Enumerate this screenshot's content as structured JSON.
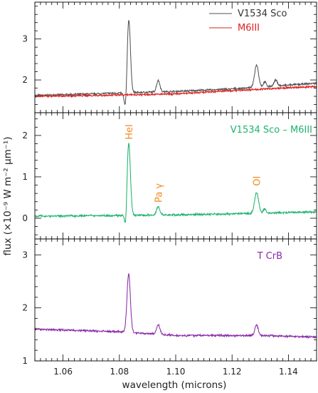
{
  "chart_data": [
    {
      "type": "line",
      "panel": "top",
      "xlim": [
        1.05,
        1.15
      ],
      "ylim": [
        1.2,
        3.9
      ],
      "yticks": [
        2,
        3
      ],
      "ytick_labels": [
        "2",
        "3"
      ],
      "legend_position": "top-right",
      "legend": [
        "V1534 Sco",
        "M6III"
      ],
      "series": [
        {
          "name": "V1534 Sco",
          "color": "#555555",
          "baseline": [
            [
              1.05,
              1.62
            ],
            [
              1.08,
              1.68
            ],
            [
              1.1,
              1.72
            ],
            [
              1.12,
              1.78
            ],
            [
              1.15,
              1.92
            ]
          ],
          "features": [
            {
              "center": 1.0833,
              "amplitude": 1.85,
              "width": 0.0006,
              "type": "emission"
            },
            {
              "center": 1.0823,
              "amplitude": -0.55,
              "width": 0.0005,
              "type": "absorption"
            },
            {
              "center": 1.0938,
              "amplitude": 0.28,
              "width": 0.0006,
              "type": "emission"
            },
            {
              "center": 1.1287,
              "amplitude": 0.55,
              "width": 0.0007,
              "type": "emission"
            },
            {
              "center": 1.1316,
              "amplitude": 0.12,
              "width": 0.0005,
              "type": "emission"
            },
            {
              "center": 1.1355,
              "amplitude": 0.14,
              "width": 0.0006,
              "type": "emission"
            }
          ]
        },
        {
          "name": "M6III",
          "color": "#dd1f1f",
          "baseline": [
            [
              1.05,
              1.6
            ],
            [
              1.08,
              1.63
            ],
            [
              1.1,
              1.66
            ],
            [
              1.12,
              1.74
            ],
            [
              1.15,
              1.84
            ]
          ],
          "features": []
        }
      ]
    },
    {
      "type": "line",
      "panel": "middle",
      "xlim": [
        1.05,
        1.15
      ],
      "ylim": [
        -0.5,
        2.55
      ],
      "yticks": [
        0,
        1,
        2
      ],
      "ytick_labels": [
        "0",
        "1",
        "2"
      ],
      "label": "V1534 Sco – M6III",
      "label_position": "top-right",
      "series": [
        {
          "name": "V1534 Sco – M6III",
          "color": "#1fb36e",
          "baseline": [
            [
              1.05,
              0.05
            ],
            [
              1.1,
              0.08
            ],
            [
              1.15,
              0.15
            ]
          ],
          "features": [
            {
              "center": 1.0833,
              "amplitude": 1.75,
              "width": 0.0006,
              "type": "emission"
            },
            {
              "center": 1.0823,
              "amplitude": -0.45,
              "width": 0.0004,
              "type": "absorption"
            },
            {
              "center": 1.0938,
              "amplitude": 0.2,
              "width": 0.0006,
              "type": "emission"
            },
            {
              "center": 1.1287,
              "amplitude": 0.5,
              "width": 0.0007,
              "type": "emission"
            },
            {
              "center": 1.1315,
              "amplitude": 0.1,
              "width": 0.0005,
              "type": "emission"
            }
          ]
        }
      ],
      "annotations": [
        {
          "text": "HeI",
          "x": 1.0833,
          "y": 1.9,
          "color": "#f08a1a"
        },
        {
          "text": "Pa γ",
          "x": 1.0938,
          "y": 0.38,
          "color": "#f08a1a"
        },
        {
          "text": "OI",
          "x": 1.1287,
          "y": 0.78,
          "color": "#f08a1a"
        }
      ]
    },
    {
      "type": "line",
      "panel": "bottom",
      "xlim": [
        1.05,
        1.15
      ],
      "ylim": [
        1.0,
        3.3
      ],
      "yticks": [
        1,
        2,
        3
      ],
      "ytick_labels": [
        "1",
        "2",
        "3"
      ],
      "xticks": [
        1.06,
        1.08,
        1.1,
        1.12,
        1.14
      ],
      "xtick_labels": [
        "1.06",
        "1.08",
        "1.10",
        "1.12",
        "1.14"
      ],
      "label": "T CrB",
      "label_position": "top-right",
      "series": [
        {
          "name": "T CrB",
          "color": "#8a2aa8",
          "baseline": [
            [
              1.05,
              1.6
            ],
            [
              1.08,
              1.55
            ],
            [
              1.1,
              1.48
            ],
            [
              1.13,
              1.48
            ],
            [
              1.15,
              1.45
            ]
          ],
          "features": [
            {
              "center": 1.0833,
              "amplitude": 1.1,
              "width": 0.0006,
              "type": "emission"
            },
            {
              "center": 1.0938,
              "amplitude": 0.18,
              "width": 0.0006,
              "type": "emission"
            },
            {
              "center": 1.1287,
              "amplitude": 0.2,
              "width": 0.0006,
              "type": "emission"
            }
          ]
        }
      ]
    }
  ],
  "axes": {
    "xlabel": "wavelength (microns)",
    "ylabel": "flux (×10⁻⁹ W m⁻² μm⁻¹)"
  },
  "colors": {
    "frame": "#000000",
    "annotation": "#f08a1a"
  }
}
